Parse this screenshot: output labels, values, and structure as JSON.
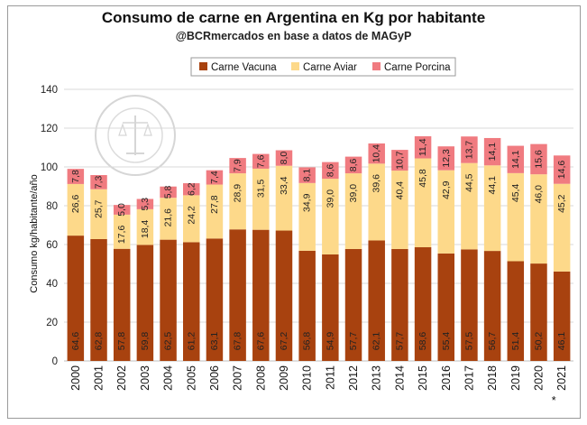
{
  "chart_data": {
    "type": "bar",
    "stacked": true,
    "title": "Consumo de carne en Argentina en Kg por habitante",
    "subtitle": "@BCRmercados en base a datos de MAGyP",
    "ylabel": "Consumo kg/habitante/año",
    "xlabel": "",
    "ylim": [
      0,
      140
    ],
    "yticks": [
      0,
      20,
      40,
      60,
      80,
      100,
      120,
      140
    ],
    "grid": true,
    "legend_position": "top",
    "categories": [
      "2000",
      "2001",
      "2002",
      "2003",
      "2004",
      "2005",
      "2006",
      "2007",
      "2008",
      "2009",
      "2010",
      "2011",
      "2012",
      "2013",
      "2014",
      "2015",
      "2016",
      "2017",
      "2018",
      "2019",
      "2020",
      "2021"
    ],
    "footnote_marker": {
      "category": "2021",
      "text": "*"
    },
    "series": [
      {
        "name": "Carne Vacuna",
        "color": "#a8420f",
        "values": [
          64.6,
          62.8,
          57.8,
          59.8,
          62.5,
          61.2,
          63.1,
          67.8,
          67.6,
          67.2,
          56.8,
          54.9,
          57.7,
          62.1,
          57.7,
          58.6,
          55.4,
          57.5,
          56.7,
          51.4,
          50.2,
          46.1
        ],
        "labels": [
          "64,6",
          "62,8",
          "57,8",
          "59,8",
          "62,5",
          "61,2",
          "63,1",
          "67,8",
          "67,6",
          "67,2",
          "56,8",
          "54,9",
          "57,7",
          "62,1",
          "57,7",
          "58,6",
          "55,4",
          "57,5",
          "56,7",
          "51,4",
          "50,2",
          "46,1"
        ]
      },
      {
        "name": "Carne Aviar",
        "color": "#fdd98a",
        "values": [
          26.6,
          25.7,
          17.6,
          18.4,
          21.6,
          24.2,
          27.8,
          28.9,
          31.5,
          33.4,
          34.9,
          39.0,
          39.0,
          39.6,
          40.4,
          45.8,
          42.9,
          44.5,
          44.1,
          45.4,
          46.0,
          45.2
        ],
        "labels": [
          "26,6",
          "25,7",
          "17,6",
          "18,4",
          "21,6",
          "24,2",
          "27,8",
          "28,9",
          "31,5",
          "33,4",
          "34,9",
          "39,0",
          "39,0",
          "39,6",
          "40,4",
          "45,8",
          "42,9",
          "44,5",
          "44,1",
          "45,4",
          "46,0",
          "45,2"
        ]
      },
      {
        "name": "Carne Porcina",
        "color": "#f07b80",
        "values": [
          7.8,
          7.3,
          5.0,
          5.3,
          5.8,
          6.2,
          7.4,
          7.9,
          7.6,
          8.0,
          8.1,
          8.6,
          8.6,
          10.4,
          10.7,
          11.4,
          12.3,
          13.7,
          14.1,
          14.1,
          15.6,
          14.6
        ],
        "labels": [
          "7,8",
          "7,3",
          "5,0",
          "5,3",
          "5,8",
          "6,2",
          "7,4",
          "7,9",
          "7,6",
          "8,0",
          "8,1",
          "8,6",
          "8,6",
          "10,4",
          "10,7",
          "11,4",
          "12,3",
          "13,7",
          "14,1",
          "14,1",
          "15,6",
          "14,6"
        ]
      }
    ]
  },
  "watermark": {
    "text": "BOLSA DE COMERCIO DE ROSARIO"
  }
}
